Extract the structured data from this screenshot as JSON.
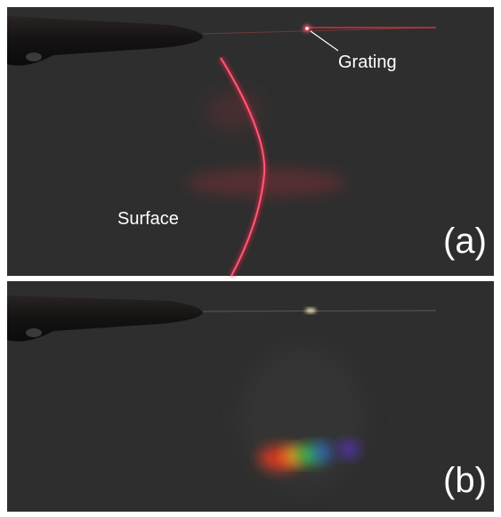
{
  "panels": [
    {
      "label": "(a)",
      "annotations": {
        "grating": "Grating",
        "surface": "Surface"
      }
    },
    {
      "label": "(b)"
    }
  ]
}
